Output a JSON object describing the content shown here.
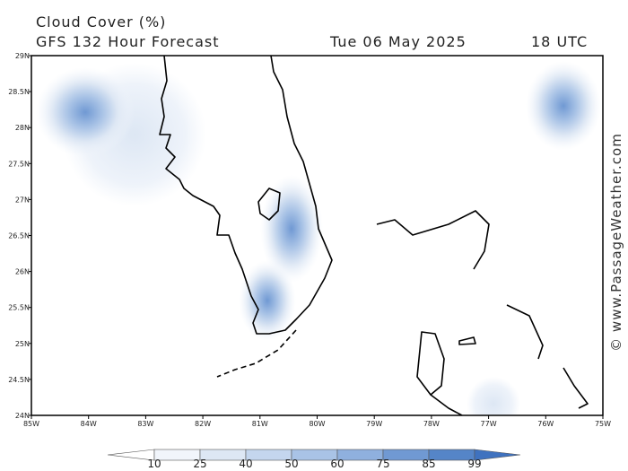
{
  "header": {
    "title": "Cloud Cover (%)",
    "model": "GFS 132 Hour Forecast",
    "date": "Tue 06 May 2025",
    "time": "18 UTC"
  },
  "map": {
    "lon_labels": [
      "85W",
      "84W",
      "83W",
      "82W",
      "81W",
      "80W",
      "79W",
      "78W",
      "77W",
      "76W",
      "75W"
    ],
    "lat_labels": [
      "29N",
      "28.5N",
      "28N",
      "27.5N",
      "27N",
      "26.5N",
      "26N",
      "25.5N",
      "25N",
      "24.5N",
      "24N"
    ]
  },
  "colorbar": {
    "levels": [
      10,
      25,
      40,
      50,
      60,
      75,
      85,
      99
    ],
    "colors": [
      "#ffffff",
      "#f1f5fb",
      "#dde7f4",
      "#c4d6ee",
      "#a9c3e6",
      "#8fb0de",
      "#7099d3",
      "#5585c8",
      "#3f72bf"
    ]
  },
  "watermark": "© www.PassageWeather.com"
}
